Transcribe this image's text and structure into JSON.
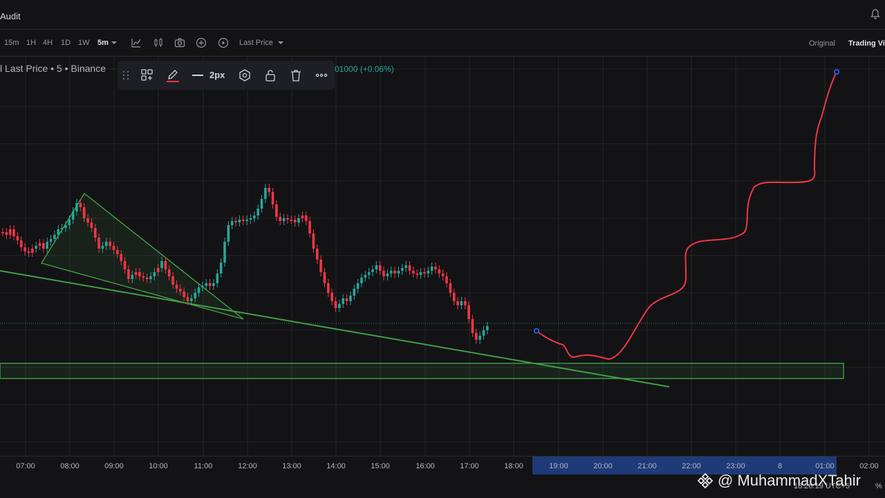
{
  "app": {
    "title": "Audit"
  },
  "timeframes": [
    {
      "label": "15m",
      "active": false
    },
    {
      "label": "1H",
      "active": false
    },
    {
      "label": "4H",
      "active": false
    },
    {
      "label": "1D",
      "active": false
    },
    {
      "label": "1W",
      "active": false
    },
    {
      "label": "5m",
      "active": true
    }
  ],
  "toolbar": {
    "last_price_label": "Last Price",
    "original_label": "Original",
    "tradingview_label": "Trading Vi"
  },
  "symbol": {
    "info": "l Last Price • 5 • Binance",
    "change": "01000 (+0.06%)"
  },
  "drawing_toolbar": {
    "width_label": "2px",
    "color": "#f23645"
  },
  "time_axis": {
    "labels": [
      "07:00",
      "08:00",
      "09:00",
      "10:00",
      "11:00",
      "12:00",
      "13:00",
      "14:00",
      "15:00",
      "16:00",
      "17:00",
      "18:00",
      "19:00",
      "20:00",
      "21:00",
      "22:00",
      "23:00",
      "8",
      "01:00",
      "02:00"
    ]
  },
  "watermark": {
    "text": "@ MuhammadXTahir"
  },
  "footer": {
    "clock": "18:26:19 UTC+5",
    "percent": "%"
  },
  "colors": {
    "up": "#26a69a",
    "down": "#f23645",
    "drawing_green": "#43a047",
    "projection": "#f23645",
    "highlight": "#1f3a78"
  },
  "chart_data": {
    "type": "candlestick",
    "x_range": [
      "06:40",
      "02:20"
    ],
    "candles": [
      [
        "o",
        336
      ],
      [
        "c",
        340
      ],
      [
        "d",
        332
      ],
      [
        "d",
        342
      ],
      [
        "d",
        348
      ],
      [
        "d",
        358
      ],
      [
        "u",
        364
      ],
      [
        "u",
        366
      ],
      [
        "d",
        360
      ],
      [
        "u",
        356
      ],
      [
        "d",
        352
      ],
      [
        "d",
        360
      ],
      [
        "u",
        350
      ],
      [
        "u",
        346
      ],
      [
        "u",
        340
      ],
      [
        "u",
        332
      ],
      [
        "u",
        330
      ],
      [
        "u",
        326
      ],
      [
        "u",
        318
      ],
      [
        "u",
        306
      ],
      [
        "u",
        294
      ],
      [
        "d",
        300
      ],
      [
        "d",
        316
      ],
      [
        "d",
        322
      ],
      [
        "d",
        330
      ],
      [
        "d",
        344
      ],
      [
        "d",
        360
      ],
      [
        "u",
        356
      ],
      [
        "u",
        350
      ],
      [
        "d",
        356
      ],
      [
        "d",
        362
      ],
      [
        "d",
        368
      ],
      [
        "d",
        378
      ],
      [
        "d",
        390
      ],
      [
        "d",
        404
      ],
      [
        "u",
        398
      ],
      [
        "d",
        394
      ],
      [
        "d",
        400
      ],
      [
        "u",
        402
      ],
      [
        "d",
        404
      ],
      [
        "u",
        400
      ],
      [
        "u",
        394
      ],
      [
        "d",
        388
      ],
      [
        "u",
        378
      ],
      [
        "d",
        390
      ],
      [
        "d",
        400
      ],
      [
        "d",
        412
      ],
      [
        "d",
        418
      ],
      [
        "u",
        422
      ],
      [
        "d",
        430
      ],
      [
        "d",
        436
      ],
      [
        "u",
        432
      ],
      [
        "u",
        424
      ],
      [
        "u",
        416
      ],
      [
        "u",
        414
      ],
      [
        "u",
        410
      ],
      [
        "u",
        414
      ],
      [
        "u",
        410
      ],
      [
        "u",
        396
      ],
      [
        "u",
        380
      ],
      [
        "u",
        350
      ],
      [
        "u",
        326
      ],
      [
        "u",
        320
      ],
      [
        "u",
        322
      ],
      [
        "u",
        318
      ],
      [
        "d",
        320
      ],
      [
        "u",
        318
      ],
      [
        "u",
        316
      ],
      [
        "u",
        312
      ],
      [
        "u",
        302
      ],
      [
        "u",
        288
      ],
      [
        "u",
        272
      ],
      [
        "d",
        278
      ],
      [
        "d",
        296
      ],
      [
        "d",
        314
      ],
      [
        "d",
        320
      ],
      [
        "u",
        316
      ],
      [
        "u",
        318
      ],
      [
        "u",
        318
      ],
      [
        "u",
        322
      ],
      [
        "u",
        316
      ],
      [
        "d",
        312
      ],
      [
        "d",
        320
      ],
      [
        "d",
        338
      ],
      [
        "d",
        360
      ],
      [
        "d",
        376
      ],
      [
        "d",
        394
      ],
      [
        "d",
        410
      ],
      [
        "d",
        424
      ],
      [
        "d",
        436
      ],
      [
        "d",
        446
      ],
      [
        "u",
        440
      ],
      [
        "u",
        432
      ],
      [
        "d",
        436
      ],
      [
        "u",
        428
      ],
      [
        "u",
        418
      ],
      [
        "u",
        410
      ],
      [
        "u",
        402
      ],
      [
        "u",
        398
      ],
      [
        "u",
        394
      ],
      [
        "u",
        390
      ],
      [
        "u",
        384
      ],
      [
        "d",
        392
      ],
      [
        "d",
        400
      ],
      [
        "u",
        396
      ],
      [
        "u",
        392
      ],
      [
        "d",
        396
      ],
      [
        "u",
        392
      ],
      [
        "u",
        388
      ],
      [
        "u",
        384
      ],
      [
        "u",
        392
      ],
      [
        "d",
        396
      ],
      [
        "d",
        398
      ],
      [
        "u",
        394
      ],
      [
        "d",
        396
      ],
      [
        "u",
        392
      ],
      [
        "u",
        386
      ],
      [
        "d",
        390
      ],
      [
        "d",
        396
      ],
      [
        "d",
        400
      ],
      [
        "d",
        410
      ],
      [
        "d",
        424
      ],
      [
        "d",
        436
      ],
      [
        "u",
        442
      ],
      [
        "u",
        436
      ],
      [
        "d",
        442
      ],
      [
        "d",
        462
      ],
      [
        "d",
        482
      ],
      [
        "d",
        492
      ],
      [
        "u",
        486
      ],
      [
        "u",
        478
      ],
      [
        "u",
        472
      ]
    ],
    "projection_end_label": ""
  }
}
